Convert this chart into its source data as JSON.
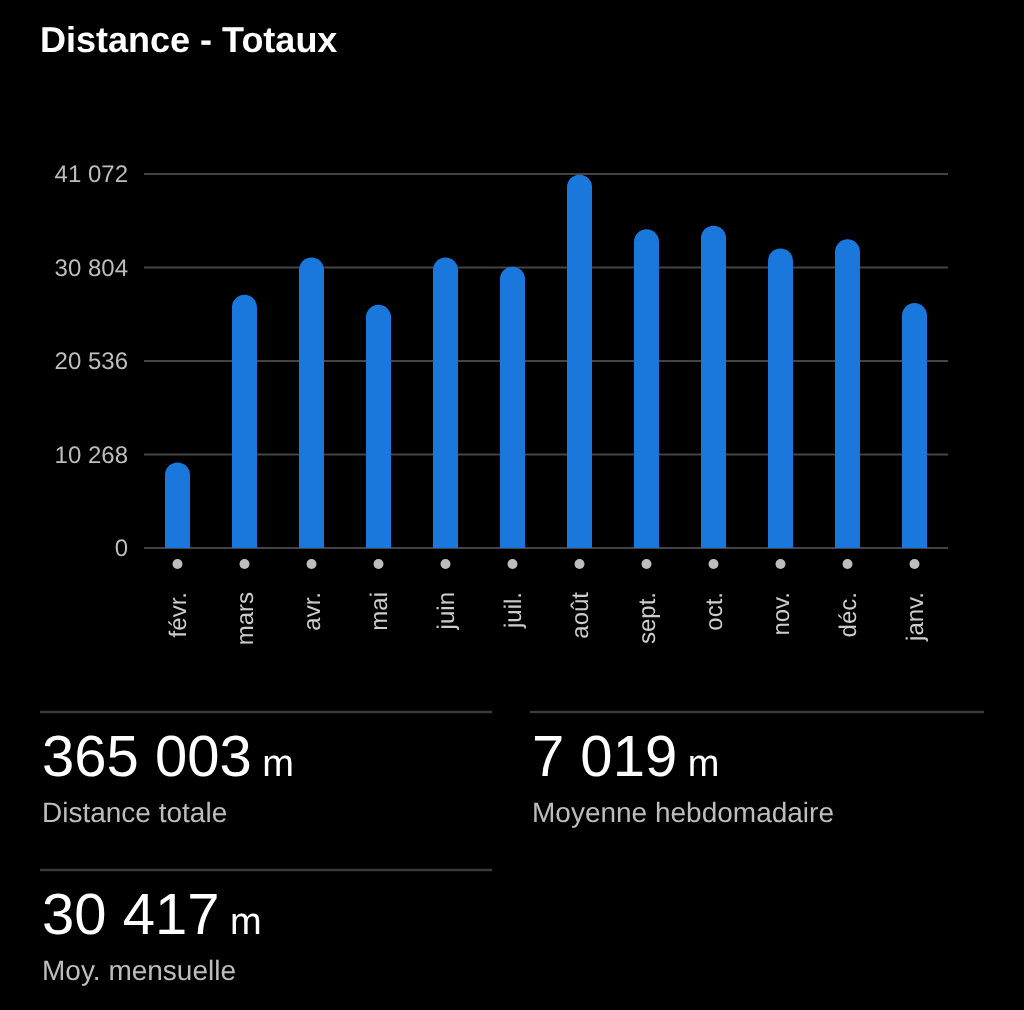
{
  "chart_data": {
    "type": "bar",
    "title": "Distance - Totaux",
    "categories": [
      "févr.",
      "mars",
      "avr.",
      "mai",
      "juin",
      "juil.",
      "août",
      "sept.",
      "oct.",
      "nov.",
      "déc.",
      "janv."
    ],
    "values": [
      9400,
      27800,
      31900,
      26700,
      31900,
      30900,
      41000,
      35000,
      35400,
      32900,
      33900,
      26900
    ],
    "color": "#1a78dc",
    "ylim": [
      0,
      41072
    ],
    "yticks": [
      0,
      {
        "value": 10268,
        "label": "10 268"
      },
      {
        "value": 20536,
        "label": "20 536"
      },
      {
        "value": 30804,
        "label": "30 804"
      },
      {
        "value": 41072,
        "label": "41 072"
      }
    ],
    "grid": "y",
    "annotations": [
      "365 003 m",
      "Distance totale",
      "7 019 m",
      "Moyenne hebdomadaire",
      "30 417 m",
      "Moy. mensuelle"
    ]
  }
}
